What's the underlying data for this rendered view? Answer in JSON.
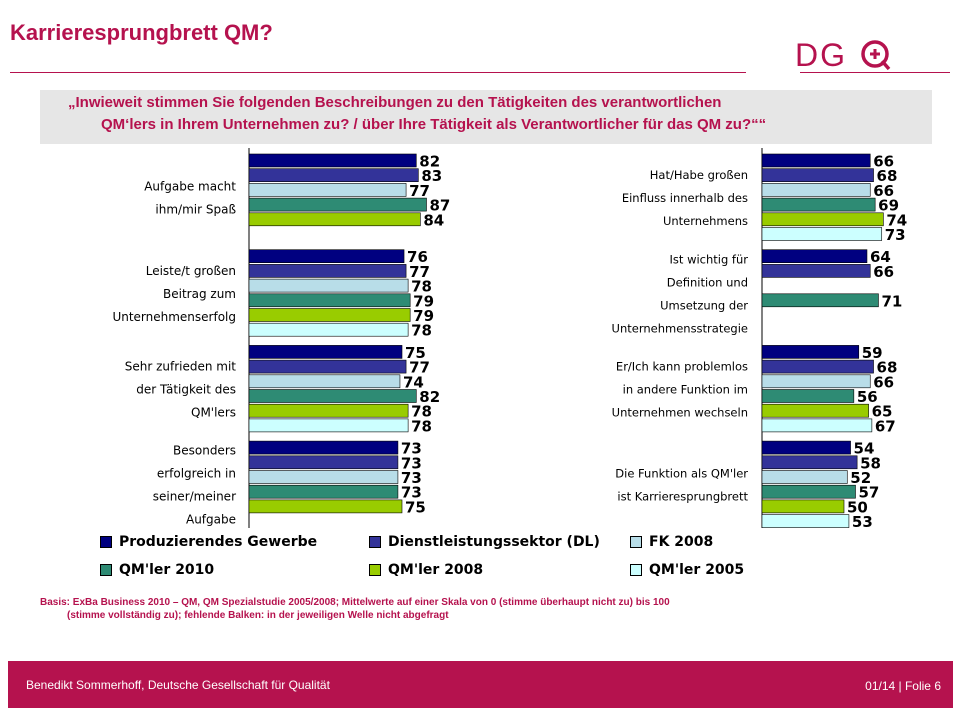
{
  "slide": {
    "title": "Karrieresprungbrett QM?",
    "question_line1": "„Inwieweit stimmen Sie folgenden Beschreibungen zu den Tätigkeiten des verantwortlichen",
    "question_line2": "QM‘lers in Ihrem Unternehmen zu? / über Ihre Tätigkeit als Verantwortlicher für das QM zu?““",
    "basis_line1": "Basis: ExBa Business 2010 – QM, QM Spezialstudie 2005/2008; Mittelwerte auf einer Skala von 0 (stimme überhaupt nicht zu) bis 100",
    "basis_line2": "(stimme vollständig zu); fehlende Balken: in der jeweiligen Welle nicht abgefragt",
    "footer_left": "Benedikt Sommerhoff, Deutsche Gesellschaft für Qualität",
    "footer_right": "01/14 | Folie 6"
  },
  "logo": {
    "text": "DGQ",
    "color": "#b5124e"
  },
  "colors": {
    "accent": "#b5124e",
    "question_bg": "#e6e6e6",
    "footer_bg": "#b5124e"
  },
  "chart_data": {
    "type": "bar",
    "orientation": "horizontal",
    "xlim": [
      0,
      100
    ],
    "series": [
      {
        "name": "Produzierendes Gewerbe",
        "color": "#000080"
      },
      {
        "name": "Dienstleistungssektor (DL)",
        "color": "#333399"
      },
      {
        "name": "FK 2008",
        "color": "#b8dde8"
      },
      {
        "name": "QM'ler 2010",
        "color": "#2e8b74"
      },
      {
        "name": "QM'ler 2008",
        "color": "#99cc00"
      },
      {
        "name": "QM'ler 2005",
        "color": "#ccffff"
      }
    ],
    "panels": [
      {
        "side": "left",
        "groups": [
          {
            "label": [
              "Aufgabe macht",
              "ihm/mir Spaß"
            ],
            "values": [
              82,
              83,
              77,
              87,
              84,
              null
            ]
          },
          {
            "label": [
              "Leiste/t großen",
              "Beitrag zum",
              "Unternehmenserfolg"
            ],
            "values": [
              76,
              77,
              78,
              79,
              79,
              78
            ]
          },
          {
            "label": [
              "Sehr zufrieden mit",
              "der Tätigkeit des",
              "QM'lers"
            ],
            "values": [
              75,
              77,
              74,
              82,
              78,
              78
            ]
          },
          {
            "label": [
              "Besonders",
              "erfolgreich in",
              "seiner/meiner",
              "Aufgabe"
            ],
            "values": [
              73,
              73,
              73,
              73,
              75,
              null
            ]
          }
        ]
      },
      {
        "side": "right",
        "groups": [
          {
            "label": [
              "Hat/Habe großen",
              "Einfluss innerhalb des",
              "Unternehmens"
            ],
            "values": [
              66,
              68,
              66,
              69,
              74,
              73
            ]
          },
          {
            "label": [
              "Ist wichtig für",
              "Definition und",
              "Umsetzung der",
              "Unternehmensstrategie"
            ],
            "values": [
              64,
              66,
              null,
              71,
              null,
              null
            ]
          },
          {
            "label": [
              "Er/Ich kann problemlos",
              "in andere Funktion im",
              "Unternehmen wechseln"
            ],
            "values": [
              59,
              68,
              66,
              56,
              65,
              67
            ]
          },
          {
            "label": [
              "Die Funktion als QM'ler",
              "ist Karrieresprungbrett"
            ],
            "values": [
              54,
              58,
              52,
              57,
              50,
              53
            ]
          }
        ]
      }
    ]
  }
}
